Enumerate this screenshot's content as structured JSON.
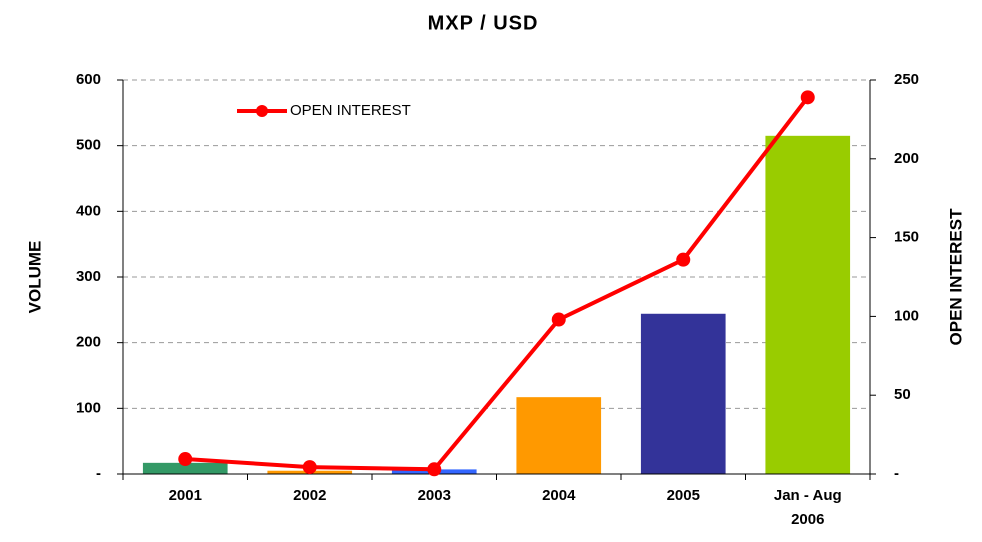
{
  "chart_data": {
    "type": "bar",
    "title": "MXP / USD",
    "categories": [
      "2001",
      "2002",
      "2003",
      "2004",
      "2005",
      "Jan - Aug 2006"
    ],
    "values": [
      17,
      5,
      7,
      117,
      244,
      515
    ],
    "colors": [
      "#339966",
      "#ff9900",
      "#3366ff",
      "#ff9900",
      "#333399",
      "#99cc00"
    ],
    "ylabel": "VOLUME",
    "y2label": "OPEN INTEREST",
    "ylim": [
      0,
      600
    ],
    "yticks": [
      {
        "value": 0,
        "label": "-"
      },
      100,
      200,
      300,
      400,
      500,
      600
    ],
    "y2lim": [
      0,
      250
    ],
    "y2ticks": [
      {
        "value": 0,
        "label": "-"
      },
      50,
      100,
      150,
      200,
      250
    ],
    "grid": true,
    "legend": "upper left",
    "series": [
      {
        "name": "OPEN INTEREST",
        "type": "line",
        "axis": "y2",
        "color": "#ff0000",
        "values": [
          9.5,
          4.4,
          3,
          98,
          136,
          239
        ]
      }
    ]
  }
}
